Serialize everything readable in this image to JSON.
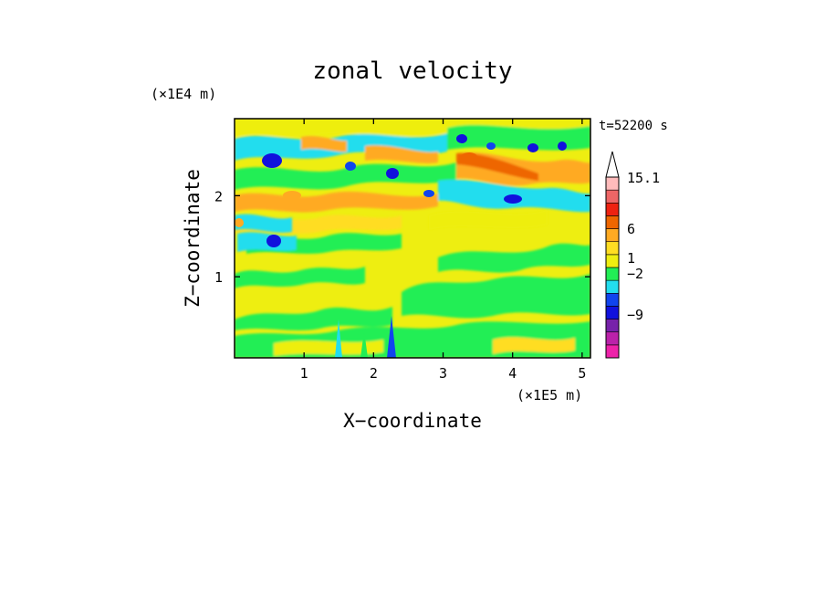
{
  "chart_data": {
    "type": "heatmap",
    "title": "zonal velocity",
    "xlabel": "X−coordinate",
    "ylabel": "Z−coordinate",
    "x_unit": "(×1E5 m)",
    "y_unit": "(×1E4 m)",
    "time_label": "t=52200 s",
    "xlim": [
      0,
      5.12
    ],
    "ylim": [
      0,
      2.95
    ],
    "x_ticks": [
      1,
      2,
      3,
      4,
      5
    ],
    "y_ticks": [
      1,
      2
    ],
    "colorbar": {
      "tick_labels": [
        "15.1",
        "6",
        "1",
        "−2",
        "−9"
      ],
      "levels": [
        {
          "color": "#ee22aa"
        },
        {
          "color": "#bb22aa"
        },
        {
          "color": "#7722aa"
        },
        {
          "color": "#1111dd"
        },
        {
          "color": "#1144ee"
        },
        {
          "color": "#22ddee"
        },
        {
          "color": "#22ee55"
        },
        {
          "color": "#eeee11"
        },
        {
          "color": "#ffdd22"
        },
        {
          "color": "#ffaa22"
        },
        {
          "color": "#ee6600"
        },
        {
          "color": "#ee2211"
        },
        {
          "color": "#ee6666"
        },
        {
          "color": "#ffbbbb"
        }
      ],
      "extend_max": true
    },
    "field_description": "Contoured zonal velocity field: bands of cyan/blue (negative) and orange (positive) aloft above ~1.3E4 m, mostly yellow/green (~0 to 1) below."
  }
}
